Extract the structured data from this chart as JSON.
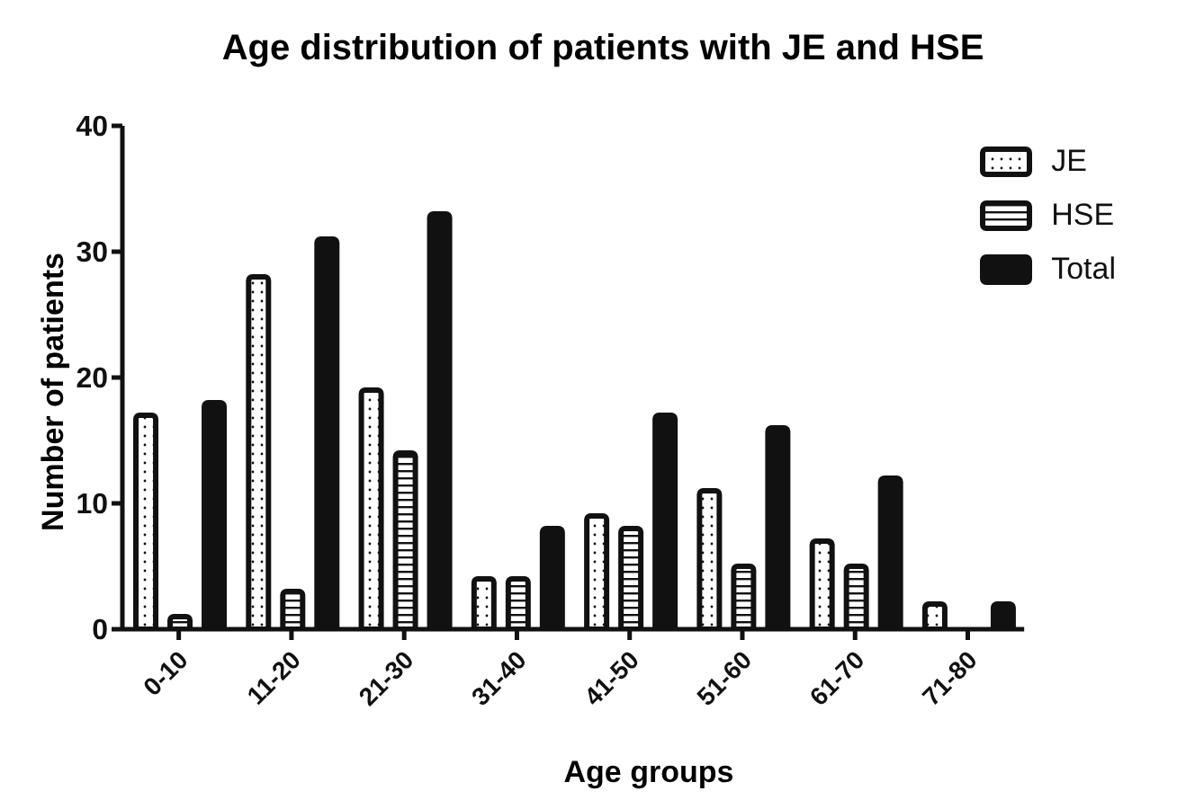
{
  "chart_data": {
    "type": "bar",
    "title": "Age distribution of patients with JE and HSE",
    "xlabel": "Age groups",
    "ylabel": "Number of patients",
    "categories": [
      "0-10",
      "11-20",
      "21-30",
      "31-40",
      "41-50",
      "51-60",
      "61-70",
      "71-80"
    ],
    "series": [
      {
        "name": "JE",
        "color": "#111111",
        "values": [
          17,
          28,
          19,
          4,
          9,
          11,
          7,
          2
        ]
      },
      {
        "name": "HSE",
        "color": "#111111",
        "values": [
          1,
          3,
          14,
          4,
          8,
          5,
          5,
          0
        ]
      },
      {
        "name": "Total",
        "color": "#111111",
        "values": [
          18,
          31,
          33,
          8,
          17,
          16,
          12,
          2
        ]
      }
    ],
    "ylim": [
      0,
      40
    ],
    "yticks": [
      0,
      10,
      20,
      30,
      40
    ],
    "grid": false,
    "legend": "top right"
  }
}
